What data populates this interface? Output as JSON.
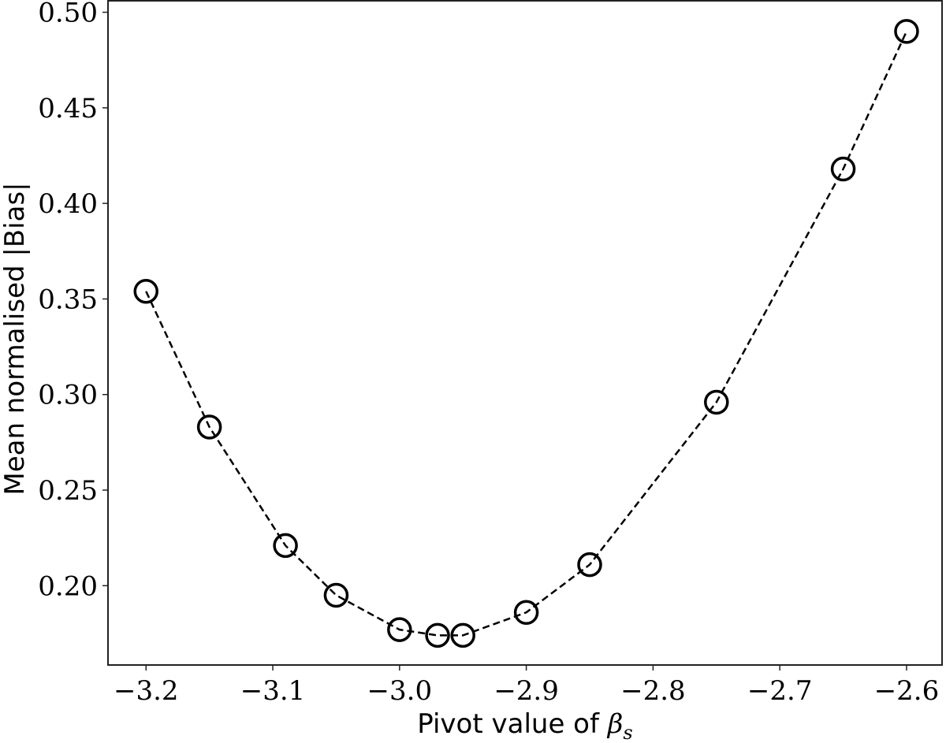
{
  "chart_data": {
    "type": "line",
    "title": "",
    "xlabel": "Pivot value of β_s",
    "xlabel_text": "Pivot value of ",
    "xlabel_symbol": "β",
    "xlabel_subscript": "s",
    "ylabel": "Mean normalised |Bias|",
    "xlim": [
      -3.23,
      -2.572
    ],
    "ylim": [
      0.1585,
      0.506
    ],
    "grid": false,
    "legend": null,
    "x_ticks": [
      -3.2,
      -3.1,
      -3.0,
      -2.9,
      -2.8,
      -2.7,
      -2.6
    ],
    "x_tick_labels": [
      "−3.2",
      "−3.1",
      "−3.0",
      "−2.9",
      "−2.8",
      "−2.7",
      "−2.6"
    ],
    "y_ticks": [
      0.2,
      0.25,
      0.3,
      0.35,
      0.4,
      0.45,
      0.5
    ],
    "y_tick_labels": [
      "0.20",
      "0.25",
      "0.30",
      "0.35",
      "0.40",
      "0.45",
      "0.50"
    ],
    "series": [
      {
        "name": "Mean normalised |Bias|",
        "style": "dashed line with open circle markers",
        "color": "#000000",
        "x": [
          -3.2,
          -3.15,
          -3.09,
          -3.05,
          -3.0,
          -2.97,
          -2.95,
          -2.9,
          -2.85,
          -2.75,
          -2.65,
          -2.6
        ],
        "values": [
          0.354,
          0.283,
          0.221,
          0.195,
          0.177,
          0.174,
          0.174,
          0.186,
          0.211,
          0.296,
          0.418,
          0.49
        ]
      }
    ]
  }
}
